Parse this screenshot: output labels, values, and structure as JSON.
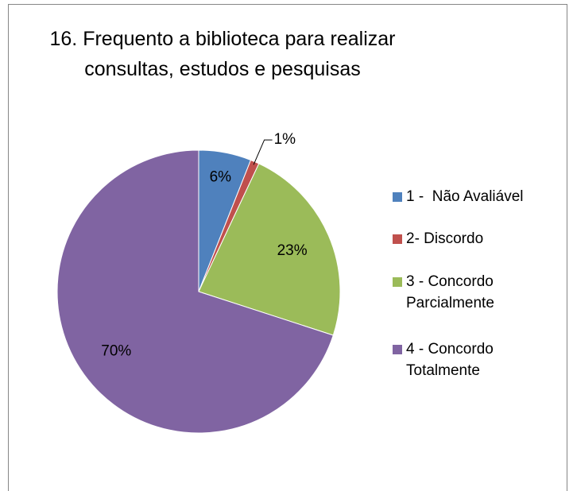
{
  "chart_data": {
    "type": "pie",
    "title": "16. Frequento a biblioteca para realizar consultas, estudos e pesquisas",
    "categories": [
      "1 -  Não Avaliável",
      "2- Discordo",
      "3 - Concordo Parcialmente",
      "4 - Concordo Totalmente"
    ],
    "values": [
      6,
      1,
      23,
      70
    ],
    "value_labels": [
      "6%",
      "1%",
      "23%",
      "70%"
    ],
    "colors": [
      "#4F81BD",
      "#C0504D",
      "#9BBB59",
      "#8064A2"
    ],
    "legend": "right"
  }
}
